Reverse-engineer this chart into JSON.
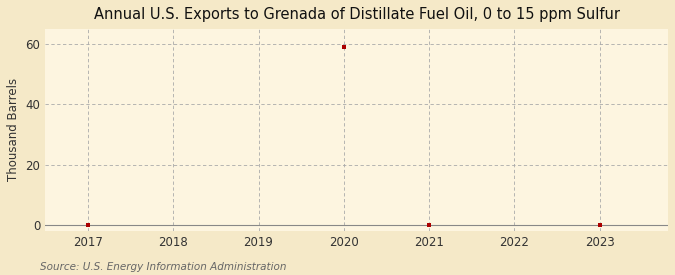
{
  "title": "Annual U.S. Exports to Grenada of Distillate Fuel Oil, 0 to 15 ppm Sulfur",
  "ylabel": "Thousand Barrels",
  "source": "Source: U.S. Energy Information Administration",
  "background_color": "#f5e9c8",
  "plot_background_color": "#fdf5e0",
  "grid_color": "#aaaaaa",
  "data_color": "#aa0000",
  "x_data": [
    2017,
    2020,
    2021,
    2023
  ],
  "y_data": [
    0,
    59,
    0,
    0
  ],
  "x_ticks": [
    2017,
    2018,
    2019,
    2020,
    2021,
    2022,
    2023
  ],
  "y_ticks": [
    0,
    20,
    40,
    60
  ],
  "xlim": [
    2016.5,
    2023.8
  ],
  "ylim": [
    -2,
    65
  ],
  "title_fontsize": 10.5,
  "label_fontsize": 8.5,
  "tick_fontsize": 8.5,
  "source_fontsize": 7.5
}
